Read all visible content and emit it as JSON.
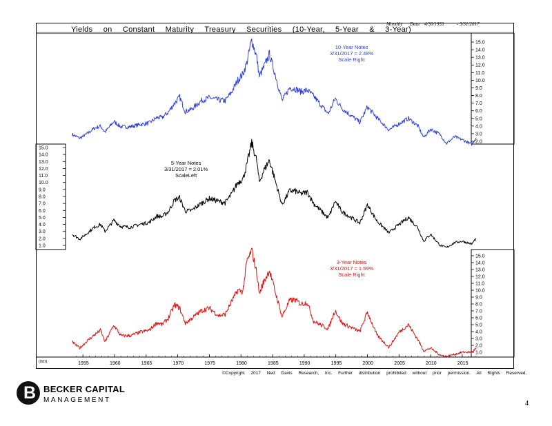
{
  "header": {
    "title": "Yields on Constant Maturity Treasury Securities (10-Year, 5-Year & 3-Year)",
    "frequency": "Monthly",
    "data_label": "Data",
    "date_start": "4/30/1953",
    "date_end": "- 3/31/2017"
  },
  "footer": {
    "source_tag": "(BD)",
    "copyright": "©Copyright 2017 Ned Davis Research, Inc. Further distribution prohibited without prior permission. All Rights Reserved.",
    "company_name_1": "BECKER CAPITAL",
    "company_name_2": "MANAGEMENT",
    "logo_letter": "B",
    "page_number": "4"
  },
  "colors": {
    "ten_year": "#2f3fe0",
    "five_year": "#000000",
    "three_year": "#e01010"
  },
  "chart_data": [
    {
      "type": "line",
      "panel": "10-Year",
      "annotation": [
        "10-Year Notes",
        "3/31/2017 = 2.48%",
        "Scale Right"
      ],
      "axis_side": "right",
      "ylim": [
        1,
        15.5
      ],
      "yticks": [
        "15.0",
        "14.0",
        "13.0",
        "12.0",
        "11.0",
        "10.0",
        "9.0",
        "8.0",
        "7.0",
        "6.0",
        "5.0",
        "4.0",
        "3.0",
        "2.0"
      ],
      "x": [
        1953.3,
        1954.5,
        1955.5,
        1956.8,
        1957.8,
        1958.5,
        1959.9,
        1961,
        1962.5,
        1964,
        1965.5,
        1966.7,
        1967.5,
        1968.5,
        1969.5,
        1970.3,
        1971.2,
        1972.2,
        1973.7,
        1975,
        1976.5,
        1977.5,
        1978.5,
        1979.5,
        1980.3,
        1980.9,
        1981.7,
        1982.5,
        1982.9,
        1983.5,
        1984.5,
        1985.5,
        1986.5,
        1987.7,
        1988.5,
        1989.5,
        1990.5,
        1991.5,
        1993.8,
        1994.9,
        1996,
        1998.8,
        2000,
        2001.5,
        2003.4,
        2005,
        2006.5,
        2008,
        2008.9,
        2010,
        2011.5,
        2012.5,
        2013.8,
        2015,
        2016.5,
        2017.2
      ],
      "values": [
        2.9,
        2.4,
        2.9,
        3.7,
        4.0,
        3.2,
        4.6,
        3.9,
        3.9,
        4.2,
        4.4,
        5.1,
        5.1,
        5.8,
        7.0,
        7.8,
        5.9,
        6.2,
        7.3,
        7.7,
        7.4,
        7.3,
        8.4,
        10.0,
        10.8,
        12.2,
        15.3,
        13.0,
        10.5,
        11.5,
        13.4,
        10.5,
        7.3,
        9.0,
        8.9,
        8.5,
        8.7,
        7.9,
        5.6,
        7.6,
        6.3,
        4.5,
        6.5,
        5.1,
        3.5,
        4.3,
        5.0,
        4.0,
        2.5,
        3.6,
        2.9,
        1.7,
        2.6,
        2.2,
        1.6,
        2.48
      ]
    },
    {
      "type": "line",
      "panel": "5-Year",
      "annotation": [
        "5-Year Notes",
        "3/31/2017 = 2.01%",
        "ScaleLeft"
      ],
      "axis_side": "left",
      "ylim": [
        0.5,
        15.5
      ],
      "yticks": [
        "15.0",
        "14.0",
        "13.0",
        "12.0",
        "11.0",
        "10.0",
        "9.0",
        "8.0",
        "7.0",
        "6.0",
        "5.0",
        "4.0",
        "3.0",
        "2.0",
        "1.0"
      ],
      "x": [
        1953.3,
        1954.5,
        1955.5,
        1956.8,
        1957.8,
        1958.5,
        1959.9,
        1961,
        1962.5,
        1964,
        1965.5,
        1966.7,
        1967.5,
        1968.5,
        1969.5,
        1970.3,
        1971.2,
        1972.2,
        1973.7,
        1975,
        1976.5,
        1977.5,
        1978.5,
        1979.5,
        1980.3,
        1980.9,
        1981.7,
        1982.5,
        1982.9,
        1983.5,
        1984.5,
        1985.5,
        1986.5,
        1987.7,
        1988.5,
        1989.5,
        1990.5,
        1991.5,
        1993.8,
        1994.9,
        1996,
        1998.8,
        2000,
        2001.5,
        2003.4,
        2005,
        2006.5,
        2008,
        2008.9,
        2010,
        2011.5,
        2012.5,
        2013.8,
        2015,
        2016.5,
        2017.2
      ],
      "values": [
        2.6,
        1.9,
        2.6,
        3.6,
        4.0,
        3.0,
        4.6,
        3.7,
        3.6,
        4.0,
        4.3,
        5.2,
        5.1,
        5.8,
        7.5,
        7.8,
        5.9,
        6.0,
        7.0,
        7.7,
        7.3,
        7.1,
        8.3,
        10.0,
        10.5,
        12.4,
        15.7,
        13.1,
        10.0,
        11.5,
        13.2,
        10.0,
        6.8,
        8.8,
        8.8,
        8.4,
        8.6,
        7.0,
        4.9,
        7.3,
        5.8,
        4.2,
        6.8,
        4.5,
        2.8,
        4.0,
        5.0,
        3.5,
        1.6,
        2.6,
        1.0,
        0.7,
        1.4,
        1.6,
        1.2,
        2.01
      ]
    },
    {
      "type": "line",
      "panel": "3-Year",
      "annotation": [
        "3-Year Notes",
        "3/31/2017 = 1.59%",
        "Scale Right"
      ],
      "axis_side": "right",
      "ylim": [
        0,
        16
      ],
      "yticks": [
        "15.0",
        "14.0",
        "13.0",
        "12.0",
        "11.0",
        "10.0",
        "9.0",
        "8.0",
        "7.0",
        "6.0",
        "5.0",
        "4.0",
        "3.0",
        "2.0",
        "1.0"
      ],
      "x": [
        1953.3,
        1954.5,
        1955.5,
        1956.8,
        1957.8,
        1958.5,
        1959.9,
        1961,
        1962.5,
        1964,
        1965.5,
        1966.7,
        1967.5,
        1968.5,
        1969.5,
        1970.3,
        1971.2,
        1972.2,
        1973.7,
        1975,
        1976.5,
        1977.5,
        1978.5,
        1979.5,
        1980.3,
        1980.9,
        1981.7,
        1982.5,
        1982.9,
        1983.5,
        1984.5,
        1985.5,
        1986.5,
        1987.7,
        1988.5,
        1989.5,
        1990.5,
        1991.5,
        1993.8,
        1994.9,
        1996,
        1998.8,
        2000,
        2001.5,
        2003.4,
        2005,
        2006.5,
        2008,
        2008.9,
        2010,
        2011.5,
        2012.5,
        2013.8,
        2015,
        2016.5,
        2017.2
      ],
      "values": [
        2.5,
        1.6,
        2.5,
        3.5,
        4.2,
        2.5,
        4.9,
        3.4,
        3.4,
        3.9,
        4.2,
        5.3,
        5.0,
        5.9,
        7.9,
        7.4,
        5.2,
        5.9,
        7.0,
        7.4,
        6.3,
        6.5,
        8.3,
        10.0,
        9.8,
        14.0,
        15.8,
        12.5,
        9.5,
        11.0,
        12.9,
        9.5,
        6.2,
        8.5,
        8.6,
        8.0,
        8.2,
        5.5,
        4.4,
        7.1,
        5.2,
        4.0,
        6.8,
        3.5,
        1.7,
        3.9,
        5.0,
        2.8,
        1.2,
        1.6,
        0.6,
        0.4,
        0.7,
        1.0,
        1.0,
        1.59
      ]
    }
  ],
  "x_axis": {
    "xlim": [
      1952.8,
      2018.5
    ],
    "ticks": [
      "1955",
      "1960",
      "1965",
      "1970",
      "1975",
      "1980",
      "1985",
      "1990",
      "1995",
      "2000",
      "2005",
      "2010",
      "2015"
    ]
  }
}
